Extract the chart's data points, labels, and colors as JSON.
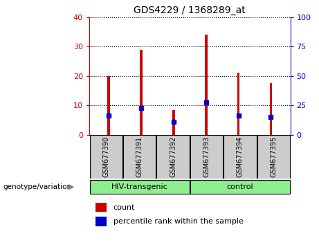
{
  "title": "GDS4229 / 1368289_at",
  "samples": [
    "GSM677390",
    "GSM677391",
    "GSM677392",
    "GSM677393",
    "GSM677394",
    "GSM677395"
  ],
  "counts": [
    20,
    29,
    8.5,
    34,
    21,
    17.5
  ],
  "percentile_ranks": [
    6.5,
    9,
    4.5,
    11,
    6.5,
    6
  ],
  "groups": [
    {
      "label": "HIV-transgenic",
      "span": [
        0,
        2
      ]
    },
    {
      "label": "control",
      "span": [
        3,
        5
      ]
    }
  ],
  "group_label_prefix": "genotype/variation",
  "ylim_left": [
    0,
    40
  ],
  "ylim_right": [
    0,
    100
  ],
  "yticks_left": [
    0,
    10,
    20,
    30,
    40
  ],
  "yticks_right": [
    0,
    25,
    50,
    75,
    100
  ],
  "bar_color": "#CC0000",
  "dot_color": "#0000CC",
  "axis_color_left": "#CC0000",
  "axis_color_right": "#0000CC",
  "legend_items": [
    "count",
    "percentile rank within the sample"
  ],
  "bar_width": 0.08,
  "dot_size": 18,
  "grid_color": "black",
  "grid_linestyle": ":",
  "sample_box_color": "#CCCCCC",
  "group_box_color": "#90EE90",
  "figure_bg": "white"
}
